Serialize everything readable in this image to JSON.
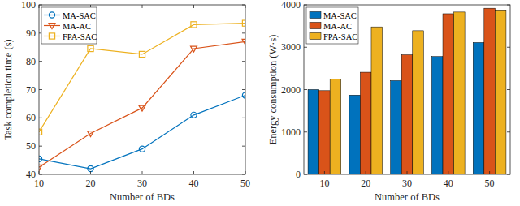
{
  "chart_data": [
    {
      "type": "line",
      "x_label": "Number of BDs",
      "y_label": "Task completion time (s)",
      "x": [
        10,
        20,
        30,
        40,
        50
      ],
      "xlim": [
        10,
        50
      ],
      "xticks": [
        10,
        20,
        30,
        40,
        50
      ],
      "ylim": [
        40,
        100
      ],
      "yticks": [
        40,
        50,
        60,
        70,
        80,
        90,
        100
      ],
      "grid": false,
      "legend": "top-left",
      "series": [
        {
          "name": "MA-SAC",
          "color": "#0072bd",
          "marker": "circle",
          "values": [
            45.5,
            42,
            49,
            61,
            68
          ]
        },
        {
          "name": "MA-AC",
          "color": "#d95319",
          "marker": "triangle-down",
          "values": [
            42.5,
            54.5,
            63.5,
            84.5,
            87
          ]
        },
        {
          "name": "FPA-SAC",
          "color": "#edb120",
          "marker": "square",
          "values": [
            55,
            84.5,
            82.5,
            93,
            93.5
          ]
        }
      ]
    },
    {
      "type": "bar",
      "x_label": "Number of BDs",
      "y_label": "Energy consumption (W·s)",
      "categories": [
        "10",
        "20",
        "30",
        "40",
        "50"
      ],
      "ylim": [
        0,
        4000
      ],
      "yticks": [
        0,
        1000,
        2000,
        3000,
        4000
      ],
      "grid": false,
      "legend": "top-left",
      "series": [
        {
          "name": "MA-SAC",
          "color": "#0072bd",
          "values": [
            2000,
            1870,
            2210,
            2780,
            3110
          ]
        },
        {
          "name": "MA-AC",
          "color": "#d95319",
          "values": [
            1975,
            2410,
            2820,
            3790,
            3920
          ]
        },
        {
          "name": "FPA-SAC",
          "color": "#edb120",
          "values": [
            2250,
            3480,
            3390,
            3830,
            3880
          ]
        }
      ]
    }
  ]
}
